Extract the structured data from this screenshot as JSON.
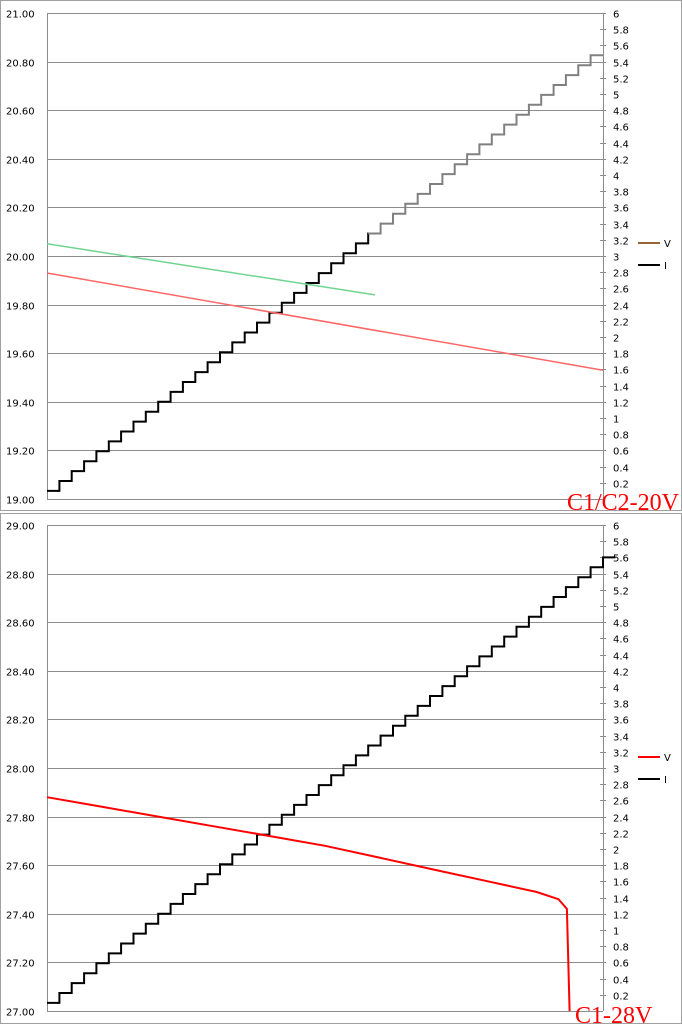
{
  "chart_data": [
    {
      "type": "line",
      "title": "",
      "caption": "C1/C2-20V",
      "caption_color": "#ff0000",
      "legend_position": "right",
      "grid": true,
      "left_axis": {
        "min": 19.0,
        "max": 21.0,
        "step": 0.2,
        "decimals": 2,
        "ticks": [
          "19.00",
          "19.20",
          "19.40",
          "19.60",
          "19.80",
          "20.00",
          "20.20",
          "20.40",
          "20.60",
          "20.80",
          "21.00"
        ]
      },
      "right_axis": {
        "min": 0,
        "max": 6,
        "step": 0.2,
        "ticks": [
          "0.2",
          "0.4",
          "0.6",
          "0.8",
          "1",
          "1.2",
          "1.4",
          "1.6",
          "1.8",
          "2",
          "2.2",
          "2.4",
          "2.6",
          "2.8",
          "3",
          "3.2",
          "3.4",
          "3.6",
          "3.8",
          "4",
          "4.2",
          "4.4",
          "4.6",
          "4.8",
          "5",
          "5.2",
          "5.4",
          "5.6",
          "5.8",
          "6"
        ]
      },
      "legend": [
        {
          "label": "V",
          "color": "#996633"
        },
        {
          "label": "I",
          "color": "#000000"
        }
      ],
      "series": [
        {
          "axis": "right",
          "kind": "step",
          "color": "#000000",
          "x_start": 0,
          "x_end": 100,
          "y_start": 0.1,
          "y_end": 5.6,
          "steps": 45,
          "light_color": "#808080",
          "light_from_x": 58
        },
        {
          "axis": "left",
          "kind": "line",
          "color": "#70d490",
          "points": [
            [
              0,
              20.05
            ],
            [
              59,
              19.84
            ]
          ]
        },
        {
          "axis": "left",
          "kind": "line",
          "color": "#ff6666",
          "points": [
            [
              0,
              19.93
            ],
            [
              100,
              19.53
            ]
          ]
        }
      ]
    },
    {
      "type": "line",
      "title": "",
      "caption": "C1-28V",
      "caption_color": "#ff0000",
      "legend_position": "right",
      "grid": true,
      "left_axis": {
        "min": 27.0,
        "max": 29.0,
        "step": 0.2,
        "decimals": 2,
        "ticks": [
          "27.00",
          "27.20",
          "27.40",
          "27.60",
          "27.80",
          "28.00",
          "28.20",
          "28.40",
          "28.60",
          "28.80",
          "29.00"
        ]
      },
      "right_axis": {
        "min": 0,
        "max": 6,
        "step": 0.2,
        "ticks": [
          "0.2",
          "0.4",
          "0.6",
          "0.8",
          "1",
          "1.2",
          "1.4",
          "1.6",
          "1.8",
          "2",
          "2.2",
          "2.4",
          "2.6",
          "2.8",
          "3",
          "3.2",
          "3.4",
          "3.6",
          "3.8",
          "4",
          "4.2",
          "4.4",
          "4.6",
          "4.8",
          "5",
          "5.2",
          "5.4",
          "5.6",
          "5.8",
          "6"
        ]
      },
      "legend": [
        {
          "label": "V",
          "color": "#ff0000"
        },
        {
          "label": "I",
          "color": "#000000"
        }
      ],
      "series": [
        {
          "axis": "right",
          "kind": "step",
          "color": "#000000",
          "x_start": 0,
          "x_end": 100,
          "y_start": 0.1,
          "y_end": 5.6,
          "steps": 45
        },
        {
          "axis": "left",
          "kind": "line",
          "color": "#ff0000",
          "width": 2,
          "points": [
            [
              0,
              27.88
            ],
            [
              10,
              27.84
            ],
            [
              20,
              27.8
            ],
            [
              30,
              27.76
            ],
            [
              40,
              27.72
            ],
            [
              50,
              27.68
            ],
            [
              60,
              27.63
            ],
            [
              70,
              27.58
            ],
            [
              80,
              27.53
            ],
            [
              88,
              27.49
            ],
            [
              92,
              27.46
            ],
            [
              93.5,
              27.42
            ],
            [
              94,
              27.0
            ]
          ]
        }
      ]
    }
  ]
}
